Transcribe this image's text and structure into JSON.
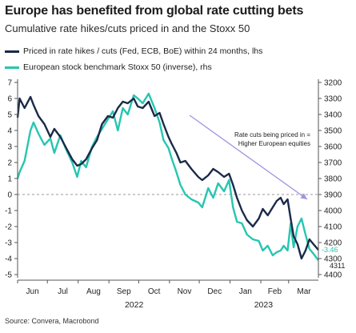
{
  "header": {
    "title": "Europe has benefited from global rate cutting bets",
    "subtitle": "Cumulative rate hikes/cuts priced in and the Stoxx 50"
  },
  "source": "Source: Convera, Macrobond",
  "chart_data": {
    "type": "line",
    "title": "Europe has benefited from global rate cutting bets",
    "subtitle": "Cumulative rate hikes/cuts priced in and the Stoxx 50",
    "x_months": [
      "Jun",
      "Jul",
      "Aug",
      "Sep",
      "Oct",
      "Nov",
      "Dec",
      "Jan",
      "Feb",
      "Mar"
    ],
    "x_years": [
      {
        "label": "2022",
        "month_index": 4
      },
      {
        "label": "2023",
        "month_index": 8
      }
    ],
    "x_range": [
      "2022-06-01",
      "2023-03-31"
    ],
    "left_axis": {
      "ticks": [
        7,
        6,
        5,
        4,
        3,
        2,
        1,
        0,
        -1,
        -2,
        -3,
        -4,
        -5
      ],
      "range": [
        -5,
        7
      ]
    },
    "right_axis": {
      "ticks": [
        3200,
        3300,
        3400,
        3500,
        3600,
        3700,
        3800,
        3900,
        4000,
        4100,
        4200,
        4300,
        4400
      ],
      "range": [
        4400,
        3200
      ],
      "inverted": true
    },
    "zero_line": 0,
    "annotation": {
      "text_line1": "Rate cuts being priced in =",
      "text_line2": "Higher European equities"
    },
    "series": [
      {
        "name": "Priced in rate hikes / cuts (Fed, ECB, BoE) within 24 months, lhs",
        "axis": "left",
        "color": "#1b2a49",
        "end_label": "-3.46",
        "points": [
          [
            "2022-06-01",
            4.8
          ],
          [
            "2022-06-03",
            6.0
          ],
          [
            "2022-06-08",
            5.4
          ],
          [
            "2022-06-14",
            6.1
          ],
          [
            "2022-06-17",
            5.6
          ],
          [
            "2022-06-22",
            4.9
          ],
          [
            "2022-06-28",
            4.4
          ],
          [
            "2022-07-04",
            3.6
          ],
          [
            "2022-07-08",
            4.1
          ],
          [
            "2022-07-14",
            3.6
          ],
          [
            "2022-07-20",
            2.9
          ],
          [
            "2022-07-26",
            2.2
          ],
          [
            "2022-07-31",
            1.8
          ],
          [
            "2022-08-04",
            1.9
          ],
          [
            "2022-08-09",
            2.2
          ],
          [
            "2022-08-15",
            2.9
          ],
          [
            "2022-08-20",
            3.4
          ],
          [
            "2022-08-25",
            4.4
          ],
          [
            "2022-08-31",
            4.9
          ],
          [
            "2022-09-05",
            4.8
          ],
          [
            "2022-09-10",
            5.4
          ],
          [
            "2022-09-15",
            5.8
          ],
          [
            "2022-09-20",
            5.7
          ],
          [
            "2022-09-26",
            6.0
          ],
          [
            "2022-09-30",
            5.5
          ],
          [
            "2022-10-05",
            5.4
          ],
          [
            "2022-10-11",
            5.8
          ],
          [
            "2022-10-17",
            4.9
          ],
          [
            "2022-10-22",
            5.1
          ],
          [
            "2022-10-26",
            4.4
          ],
          [
            "2022-10-31",
            3.6
          ],
          [
            "2022-11-03",
            3.2
          ],
          [
            "2022-11-08",
            2.6
          ],
          [
            "2022-11-12",
            2.0
          ],
          [
            "2022-11-17",
            2.1
          ],
          [
            "2022-11-23",
            1.6
          ],
          [
            "2022-11-30",
            1.1
          ],
          [
            "2022-12-04",
            0.9
          ],
          [
            "2022-12-10",
            1.2
          ],
          [
            "2022-12-15",
            1.6
          ],
          [
            "2022-12-20",
            1.4
          ],
          [
            "2022-12-26",
            1.1
          ],
          [
            "2022-12-31",
            1.3
          ],
          [
            "2023-01-04",
            0.6
          ],
          [
            "2023-01-08",
            -0.2
          ],
          [
            "2023-01-13",
            -1.0
          ],
          [
            "2023-01-18",
            -1.6
          ],
          [
            "2023-01-24",
            -2.0
          ],
          [
            "2023-01-30",
            -1.5
          ],
          [
            "2023-02-03",
            -0.9
          ],
          [
            "2023-02-08",
            -1.3
          ],
          [
            "2023-02-13",
            -0.8
          ],
          [
            "2023-02-17",
            -0.4
          ],
          [
            "2023-02-21",
            -0.2
          ],
          [
            "2023-02-24",
            -0.6
          ],
          [
            "2023-02-28",
            -0.3
          ],
          [
            "2023-03-03",
            -1.5
          ],
          [
            "2023-03-06",
            -2.6
          ],
          [
            "2023-03-10",
            -3.1
          ],
          [
            "2023-03-14",
            -4.0
          ],
          [
            "2023-03-18",
            -3.5
          ],
          [
            "2023-03-22",
            -2.8
          ],
          [
            "2023-03-26",
            -3.1
          ],
          [
            "2023-03-31",
            -3.46
          ]
        ]
      },
      {
        "name": "European stock benchmark Stoxx 50 (inverse), rhs",
        "axis": "right",
        "color": "#26c6b0",
        "end_label": "4311",
        "points": [
          [
            "2022-06-01",
            3800
          ],
          [
            "2022-06-03",
            3760
          ],
          [
            "2022-06-08",
            3690
          ],
          [
            "2022-06-14",
            3500
          ],
          [
            "2022-06-17",
            3450
          ],
          [
            "2022-06-22",
            3520
          ],
          [
            "2022-06-28",
            3590
          ],
          [
            "2022-07-04",
            3550
          ],
          [
            "2022-07-08",
            3640
          ],
          [
            "2022-07-14",
            3530
          ],
          [
            "2022-07-20",
            3620
          ],
          [
            "2022-07-26",
            3700
          ],
          [
            "2022-07-31",
            3790
          ],
          [
            "2022-08-04",
            3690
          ],
          [
            "2022-08-09",
            3730
          ],
          [
            "2022-08-15",
            3600
          ],
          [
            "2022-08-20",
            3540
          ],
          [
            "2022-08-25",
            3490
          ],
          [
            "2022-08-31",
            3430
          ],
          [
            "2022-09-05",
            3380
          ],
          [
            "2022-09-10",
            3500
          ],
          [
            "2022-09-15",
            3360
          ],
          [
            "2022-09-20",
            3400
          ],
          [
            "2022-09-26",
            3280
          ],
          [
            "2022-09-30",
            3300
          ],
          [
            "2022-10-05",
            3330
          ],
          [
            "2022-10-11",
            3270
          ],
          [
            "2022-10-17",
            3360
          ],
          [
            "2022-10-22",
            3450
          ],
          [
            "2022-10-26",
            3560
          ],
          [
            "2022-10-31",
            3610
          ],
          [
            "2022-11-03",
            3670
          ],
          [
            "2022-11-08",
            3760
          ],
          [
            "2022-11-12",
            3840
          ],
          [
            "2022-11-17",
            3900
          ],
          [
            "2022-11-23",
            3930
          ],
          [
            "2022-11-30",
            3950
          ],
          [
            "2022-12-04",
            3980
          ],
          [
            "2022-12-10",
            3860
          ],
          [
            "2022-12-15",
            3920
          ],
          [
            "2022-12-20",
            3830
          ],
          [
            "2022-12-26",
            3880
          ],
          [
            "2022-12-31",
            3810
          ],
          [
            "2023-01-04",
            3980
          ],
          [
            "2023-01-08",
            4070
          ],
          [
            "2023-01-13",
            4080
          ],
          [
            "2023-01-18",
            4150
          ],
          [
            "2023-01-24",
            4180
          ],
          [
            "2023-01-30",
            4190
          ],
          [
            "2023-02-03",
            4250
          ],
          [
            "2023-02-08",
            4220
          ],
          [
            "2023-02-13",
            4280
          ],
          [
            "2023-02-17",
            4260
          ],
          [
            "2023-02-21",
            4250
          ],
          [
            "2023-02-24",
            4220
          ],
          [
            "2023-02-28",
            4250
          ],
          [
            "2023-03-03",
            4080
          ],
          [
            "2023-03-06",
            4230
          ],
          [
            "2023-03-10",
            4100
          ],
          [
            "2023-03-14",
            4050
          ],
          [
            "2023-03-18",
            4150
          ],
          [
            "2023-03-22",
            4240
          ],
          [
            "2023-03-26",
            4270
          ],
          [
            "2023-03-31",
            4311
          ]
        ]
      }
    ]
  }
}
